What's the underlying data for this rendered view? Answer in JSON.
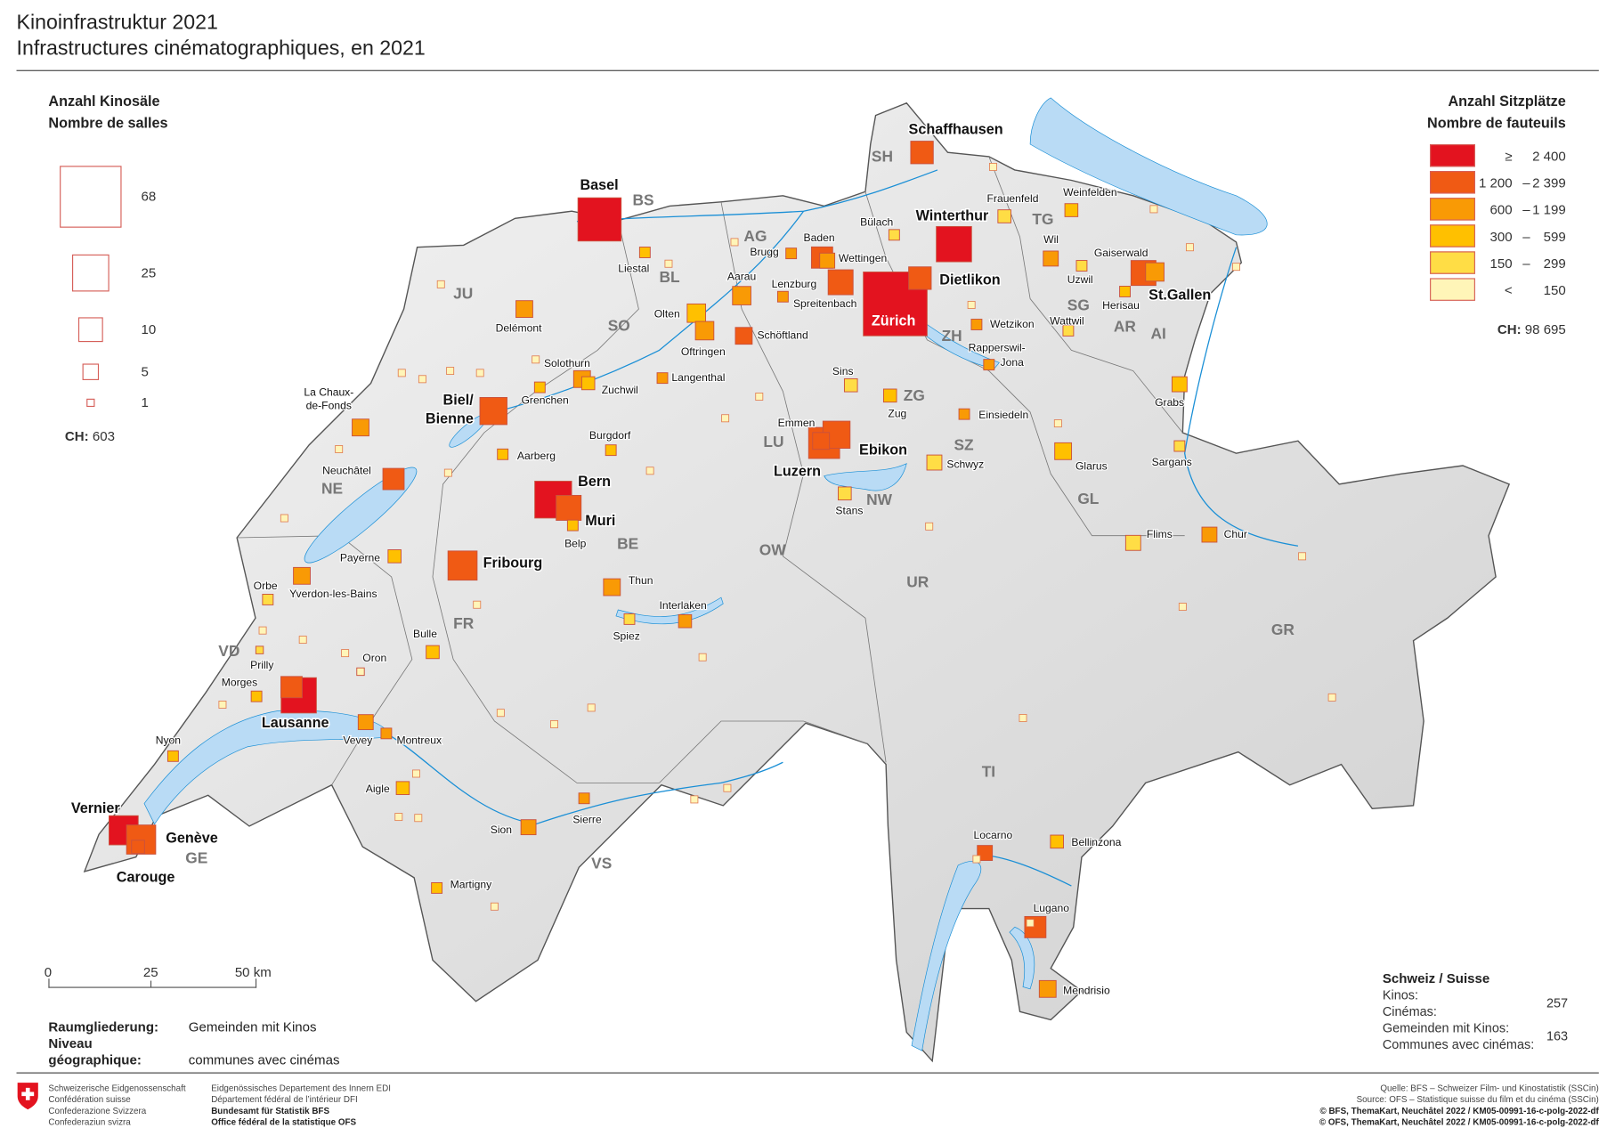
{
  "title": {
    "line1": "Kinoinfrastruktur 2021",
    "line2": "Infrastructures cinématographiques, en 2021"
  },
  "legend_halls": {
    "title_de": "Anzahl Kinosäle",
    "title_fr": "Nombre de salles",
    "items": [
      {
        "label": "68",
        "halls": 68
      },
      {
        "label": "25",
        "halls": 25
      },
      {
        "label": "10",
        "halls": 10
      },
      {
        "label": "5",
        "halls": 5
      },
      {
        "label": "1",
        "halls": 1
      }
    ],
    "total_label": "CH:",
    "total_value": "603"
  },
  "legend_seats": {
    "title_de": "Anzahl Sitzplätze",
    "title_fr": "Nombre de fauteuils",
    "items": [
      {
        "from": "≥",
        "dash": "",
        "to": "2 400",
        "color": "#e3131f"
      },
      {
        "from": "1 200",
        "dash": "–",
        "to": "2 399",
        "color": "#f05a14"
      },
      {
        "from": "600",
        "dash": "–",
        "to": "1 199",
        "color": "#f99a05"
      },
      {
        "from": "300",
        "dash": "–",
        "to": "599",
        "color": "#ffc000"
      },
      {
        "from": "150",
        "dash": "–",
        "to": "299",
        "color": "#ffdd45"
      },
      {
        "from": "<",
        "dash": "",
        "to": "150",
        "color": "#fff5b8"
      }
    ],
    "total_label": "CH:",
    "total_value": "98 695"
  },
  "scalebar": {
    "ticks": [
      "0",
      "25",
      "50 km"
    ]
  },
  "level": {
    "label_de": "Raumgliederung:",
    "label_fr": "Niveau géographique:",
    "value_de": "Gemeinden mit Kinos",
    "value_fr": "communes avec cinémas"
  },
  "summary": {
    "title": "Schweiz / Suisse",
    "rows": [
      {
        "de": "Kinos:",
        "fr": "Cinémas:",
        "value": "257"
      },
      {
        "de": "Gemeinden mit Kinos:",
        "fr": "Communes avec cinémas:",
        "value": "163"
      }
    ]
  },
  "footer": {
    "confed": [
      "Schweizerische Eidgenossenschaft",
      "Confédération suisse",
      "Confederazione Svizzera",
      "Confederaziun svizra"
    ],
    "dept": [
      "Eidgenössisches Departement des Innern EDI",
      "Département fédéral de l’intérieur DFI",
      "Bundesamt für Statistik BFS",
      "Office fédéral de la statistique OFS"
    ],
    "source": [
      "Quelle: BFS – Schweizer Film- und Kinostatistik (SSCin)",
      "Source: OFS – Statistique suisse du film et du cinéma (SSCin)",
      "© BFS, ThemaKart, Neuchâtel 2022 / KM05-00991-16-c-polg-2022-df",
      "© OFS, ThemaKart, Neuchâtel 2022 / KM05-00991-16-c-polg-2022-df"
    ]
  },
  "colors": {
    "water": "#b9dbf5",
    "river": "#1a8fd6",
    "land": "#e8e8e8",
    "c6": "#e3131f",
    "c5": "#f05a14",
    "c4": "#f99a05",
    "c3": "#ffc000",
    "c2": "#ffdd45",
    "c1": "#fff5b8"
  },
  "cinemas": [
    {
      "name": "Basel",
      "halls": 33,
      "cls": "c6"
    },
    {
      "name": "Schaffhausen",
      "halls": 9,
      "cls": "c5"
    },
    {
      "name": "Winterthur",
      "halls": 22,
      "cls": "c6"
    },
    {
      "name": "Zürich",
      "halls": 72,
      "cls": "c6"
    },
    {
      "name": "Dietlikon",
      "halls": 9,
      "cls": "c5"
    },
    {
      "name": "Baden",
      "halls": 8,
      "cls": "c5"
    },
    {
      "name": "Wettingen",
      "halls": 4,
      "cls": "c4"
    },
    {
      "name": "Spreitenbach",
      "halls": 11,
      "cls": "c5"
    },
    {
      "name": "Aarau",
      "halls": 6,
      "cls": "c4"
    },
    {
      "name": "Olten",
      "halls": 6,
      "cls": "c3"
    },
    {
      "name": "Oftringen",
      "halls": 6,
      "cls": "c4"
    },
    {
      "name": "Schöftland",
      "halls": 5,
      "cls": "c5"
    },
    {
      "name": "Lenzburg",
      "halls": 2,
      "cls": "c4"
    },
    {
      "name": "Brugg",
      "halls": 2,
      "cls": "c4"
    },
    {
      "name": "Delémont",
      "halls": 5,
      "cls": "c4"
    },
    {
      "name": "Solothurn",
      "halls": 5,
      "cls": "c4"
    },
    {
      "name": "Zuchwil",
      "halls": 3,
      "cls": "c3"
    },
    {
      "name": "Biel/Bienne",
      "halls": 13,
      "cls": "c5"
    },
    {
      "name": "La Chaux-de-Fonds",
      "halls": 5,
      "cls": "c4"
    },
    {
      "name": "Neuchâtel",
      "halls": 8,
      "cls": "c5"
    },
    {
      "name": "Bern",
      "halls": 24,
      "cls": "c6"
    },
    {
      "name": "Muri",
      "halls": 11,
      "cls": "c5"
    },
    {
      "name": "Fribourg",
      "halls": 15,
      "cls": "c5"
    },
    {
      "name": "Thun",
      "halls": 5,
      "cls": "c4"
    },
    {
      "name": "Yverdon-les-Bains",
      "halls": 5,
      "cls": "c4"
    },
    {
      "name": "Payerne",
      "halls": 3,
      "cls": "c3"
    },
    {
      "name": "Lausanne",
      "halls": 22,
      "cls": "c6"
    },
    {
      "name": "Lausanne 2",
      "halls": 8,
      "cls": "c5"
    },
    {
      "name": "Vevey",
      "halls": 4,
      "cls": "c4"
    },
    {
      "name": "Vernier",
      "halls": 15,
      "cls": "c6"
    },
    {
      "name": "Genève",
      "halls": 15,
      "cls": "c5"
    },
    {
      "name": "Luzern",
      "halls": 17,
      "cls": "c5"
    },
    {
      "name": "Ebikon",
      "halls": 13,
      "cls": "c5"
    },
    {
      "name": "Emmen",
      "halls": 5,
      "cls": "c5"
    },
    {
      "name": "Zug",
      "halls": 3,
      "cls": "c3"
    },
    {
      "name": "Schwyz",
      "halls": 4,
      "cls": "c2"
    },
    {
      "name": "Einsiedeln",
      "halls": 2,
      "cls": "c4"
    },
    {
      "name": "Stans",
      "halls": 3,
      "cls": "c2"
    },
    {
      "name": "Wetzikon",
      "halls": 2,
      "cls": "c4"
    },
    {
      "name": "Rapperswil-Jona",
      "halls": 2,
      "cls": "c4"
    },
    {
      "name": "Wil",
      "halls": 4,
      "cls": "c4"
    },
    {
      "name": "Frauenfeld",
      "halls": 3,
      "cls": "c2"
    },
    {
      "name": "Weinfelden",
      "halls": 3,
      "cls": "c3"
    },
    {
      "name": "Uzwil",
      "halls": 2,
      "cls": "c2"
    },
    {
      "name": "St.Gallen",
      "halls": 11,
      "cls": "c5"
    },
    {
      "name": "Gaiserwald",
      "halls": 6,
      "cls": "c4"
    },
    {
      "name": "Herisau",
      "halls": 2,
      "cls": "c3"
    },
    {
      "name": "Wattwil",
      "halls": 2,
      "cls": "c2"
    },
    {
      "name": "Grabs",
      "halls": 4,
      "cls": "c3"
    },
    {
      "name": "Glarus",
      "halls": 5,
      "cls": "c3"
    },
    {
      "name": "Sargans",
      "halls": 2,
      "cls": "c2"
    },
    {
      "name": "Flims",
      "halls": 4,
      "cls": "c2"
    },
    {
      "name": "Chur",
      "halls": 4,
      "cls": "c4"
    },
    {
      "name": "Interlaken",
      "halls": 3,
      "cls": "c4"
    },
    {
      "name": "Spiez",
      "halls": 2,
      "cls": "c2"
    },
    {
      "name": "Bulle",
      "halls": 3,
      "cls": "c3"
    },
    {
      "name": "Morges",
      "halls": 2,
      "cls": "c3"
    },
    {
      "name": "Aigle",
      "halls": 3,
      "cls": "c3"
    },
    {
      "name": "Montreux",
      "halls": 2,
      "cls": "c4"
    },
    {
      "name": "Sion",
      "halls": 4,
      "cls": "c4"
    },
    {
      "name": "Sierre",
      "halls": 2,
      "cls": "c4"
    },
    {
      "name": "Martigny",
      "halls": 2,
      "cls": "c3"
    },
    {
      "name": "Nyon",
      "halls": 2,
      "cls": "c3"
    },
    {
      "name": "Locarno",
      "halls": 4,
      "cls": "c5"
    },
    {
      "name": "Bellinzona",
      "halls": 3,
      "cls": "c3"
    },
    {
      "name": "Lugano",
      "halls": 8,
      "cls": "c5"
    },
    {
      "name": "Mendrisio",
      "halls": 5,
      "cls": "c4"
    },
    {
      "name": "Aarberg",
      "halls": 2,
      "cls": "c3"
    },
    {
      "name": "Burgdorf",
      "halls": 2,
      "cls": "c3"
    },
    {
      "name": "Langenthal",
      "halls": 2,
      "cls": "c4"
    },
    {
      "name": "Belp",
      "halls": 2,
      "cls": "c3"
    },
    {
      "name": "Orbe",
      "halls": 2,
      "cls": "c2"
    },
    {
      "name": "Sins",
      "halls": 3,
      "cls": "c2"
    },
    {
      "name": "Liestal",
      "halls": 2,
      "cls": "c3"
    },
    {
      "name": "Bülach",
      "halls": 2,
      "cls": "c2"
    },
    {
      "name": "Prilly",
      "halls": 1,
      "cls": "c2"
    },
    {
      "name": "Oron",
      "halls": 1,
      "cls": "c1"
    },
    {
      "name": "Grenchen",
      "halls": 2,
      "cls": "c3"
    },
    {
      "name": "Carouge",
      "halls": 3,
      "cls": "c5"
    }
  ],
  "labels": [
    {
      "text": "Basel",
      "style": "city"
    },
    {
      "text": "Schaffhausen",
      "style": "city"
    },
    {
      "text": "Winterthur",
      "style": "city"
    },
    {
      "text": "Zürich",
      "style": "cityw"
    },
    {
      "text": "Dietlikon",
      "style": "city"
    },
    {
      "text": "St.Gallen",
      "style": "city"
    },
    {
      "text": "Biel/",
      "style": "city"
    },
    {
      "text": "Bienne",
      "style": "city"
    },
    {
      "text": "Bern",
      "style": "city"
    },
    {
      "text": "Muri",
      "style": "city"
    },
    {
      "text": "Fribourg",
      "style": "city"
    },
    {
      "text": "Lausanne",
      "style": "city"
    },
    {
      "text": "Genève",
      "style": "city"
    },
    {
      "text": "Carouge",
      "style": "city"
    },
    {
      "text": "Vernier",
      "style": "city"
    },
    {
      "text": "Luzern",
      "style": "city"
    },
    {
      "text": "Ebikon",
      "style": "city"
    },
    {
      "text": "Baden",
      "style": "small"
    },
    {
      "text": "Wettingen",
      "style": "small"
    },
    {
      "text": "Spreitenbach",
      "style": "small"
    },
    {
      "text": "Aarau",
      "style": "small"
    },
    {
      "text": "Brugg",
      "style": "small"
    },
    {
      "text": "Lenzburg",
      "style": "small"
    },
    {
      "text": "Olten",
      "style": "small"
    },
    {
      "text": "Oftringen",
      "style": "small"
    },
    {
      "text": "Schöftland",
      "style": "small"
    },
    {
      "text": "Liestal",
      "style": "small"
    },
    {
      "text": "Delémont",
      "style": "small"
    },
    {
      "text": "Solothurn",
      "style": "small"
    },
    {
      "text": "Zuchwil",
      "style": "small"
    },
    {
      "text": "Grenchen",
      "style": "small"
    },
    {
      "text": "Langenthal",
      "style": "small"
    },
    {
      "text": "La Chaux-",
      "style": "small"
    },
    {
      "text": "de-Fonds",
      "style": "small"
    },
    {
      "text": "Neuchâtel",
      "style": "small"
    },
    {
      "text": "Aarberg",
      "style": "small"
    },
    {
      "text": "Burgdorf",
      "style": "small"
    },
    {
      "text": "Belp",
      "style": "small"
    },
    {
      "text": "Thun",
      "style": "small"
    },
    {
      "text": "Interlaken",
      "style": "small"
    },
    {
      "text": "Spiez",
      "style": "small"
    },
    {
      "text": "Payerne",
      "style": "small"
    },
    {
      "text": "Orbe",
      "style": "small"
    },
    {
      "text": "Yverdon-les-Bains",
      "style": "small"
    },
    {
      "text": "Bulle",
      "style": "small"
    },
    {
      "text": "Prilly",
      "style": "small"
    },
    {
      "text": "Oron",
      "style": "small"
    },
    {
      "text": "Morges",
      "style": "small"
    },
    {
      "text": "Vevey",
      "style": "small"
    },
    {
      "text": "Montreux",
      "style": "small"
    },
    {
      "text": "Nyon",
      "style": "small"
    },
    {
      "text": "Aigle",
      "style": "small"
    },
    {
      "text": "Sion",
      "style": "small"
    },
    {
      "text": "Sierre",
      "style": "small"
    },
    {
      "text": "Martigny",
      "style": "small"
    },
    {
      "text": "Emmen",
      "style": "small"
    },
    {
      "text": "Stans",
      "style": "small"
    },
    {
      "text": "Sins",
      "style": "small"
    },
    {
      "text": "Zug",
      "style": "small"
    },
    {
      "text": "Schwyz",
      "style": "small"
    },
    {
      "text": "Einsiedeln",
      "style": "small"
    },
    {
      "text": "Bülach",
      "style": "small"
    },
    {
      "text": "Frauenfeld",
      "style": "small"
    },
    {
      "text": "Weinfelden",
      "style": "small"
    },
    {
      "text": "Wil",
      "style": "small"
    },
    {
      "text": "Uzwil",
      "style": "small"
    },
    {
      "text": "Gaiserwald",
      "style": "small"
    },
    {
      "text": "Herisau",
      "style": "small"
    },
    {
      "text": "Wattwil",
      "style": "small"
    },
    {
      "text": "Wetzikon",
      "style": "small"
    },
    {
      "text": "Rapperswil-",
      "style": "small"
    },
    {
      "text": "Jona",
      "style": "small"
    },
    {
      "text": "Grabs",
      "style": "small"
    },
    {
      "text": "Glarus",
      "style": "small"
    },
    {
      "text": "Sargans",
      "style": "small"
    },
    {
      "text": "Flims",
      "style": "small"
    },
    {
      "text": "Chur",
      "style": "small"
    },
    {
      "text": "Locarno",
      "style": "small"
    },
    {
      "text": "Bellinzona",
      "style": "small"
    },
    {
      "text": "Lugano",
      "style": "small"
    },
    {
      "text": "Mendrisio",
      "style": "small"
    },
    {
      "text": "SH",
      "style": "canton"
    },
    {
      "text": "BS",
      "style": "canton"
    },
    {
      "text": "BL",
      "style": "canton"
    },
    {
      "text": "AG",
      "style": "canton"
    },
    {
      "text": "JU",
      "style": "canton"
    },
    {
      "text": "SO",
      "style": "canton"
    },
    {
      "text": "TG",
      "style": "canton"
    },
    {
      "text": "ZH",
      "style": "canton"
    },
    {
      "text": "SG",
      "style": "canton"
    },
    {
      "text": "AR",
      "style": "canton"
    },
    {
      "text": "AI",
      "style": "canton"
    },
    {
      "text": "ZG",
      "style": "canton"
    },
    {
      "text": "SZ",
      "style": "canton"
    },
    {
      "text": "LU",
      "style": "canton"
    },
    {
      "text": "NE",
      "style": "canton"
    },
    {
      "text": "BE",
      "style": "canton"
    },
    {
      "text": "NW",
      "style": "canton"
    },
    {
      "text": "OW",
      "style": "canton"
    },
    {
      "text": "UR",
      "style": "canton"
    },
    {
      "text": "GL",
      "style": "canton"
    },
    {
      "text": "GR",
      "style": "canton"
    },
    {
      "text": "FR",
      "style": "canton"
    },
    {
      "text": "VD",
      "style": "canton"
    },
    {
      "text": "GE",
      "style": "canton"
    },
    {
      "text": "VS",
      "style": "canton"
    },
    {
      "text": "TI",
      "style": "canton"
    }
  ]
}
